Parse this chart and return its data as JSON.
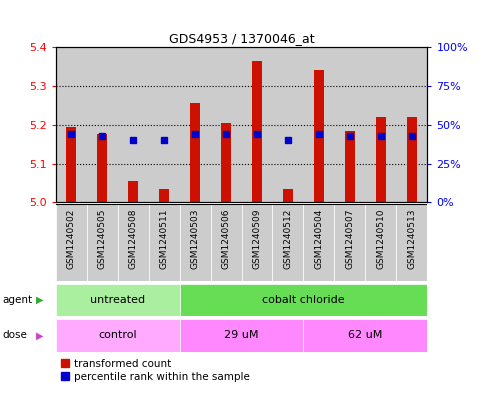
{
  "title": "GDS4953 / 1370046_at",
  "samples": [
    "GSM1240502",
    "GSM1240505",
    "GSM1240508",
    "GSM1240511",
    "GSM1240503",
    "GSM1240506",
    "GSM1240509",
    "GSM1240512",
    "GSM1240504",
    "GSM1240507",
    "GSM1240510",
    "GSM1240513"
  ],
  "red_values": [
    5.195,
    5.175,
    5.055,
    5.035,
    5.255,
    5.205,
    5.365,
    5.035,
    5.34,
    5.185,
    5.22,
    5.22
  ],
  "blue_pct": [
    44,
    43,
    40,
    40,
    44,
    44,
    44,
    40,
    44,
    43,
    43,
    43
  ],
  "ylim_left": [
    5.0,
    5.4
  ],
  "ylim_right": [
    0,
    100
  ],
  "yticks_left": [
    5.0,
    5.1,
    5.2,
    5.3,
    5.4
  ],
  "yticks_right": [
    0,
    25,
    50,
    75,
    100
  ],
  "ytick_labels_right": [
    "0%",
    "25%",
    "50%",
    "75%",
    "100%"
  ],
  "agent_groups": [
    {
      "label": "untreated",
      "span": [
        0,
        4
      ],
      "color": "#AAEEA0"
    },
    {
      "label": "cobalt chloride",
      "span": [
        4,
        12
      ],
      "color": "#66DD55"
    }
  ],
  "dose_colors": [
    "#FFAAFF",
    "#FF88FF",
    "#FF88FF"
  ],
  "dose_groups": [
    {
      "label": "control",
      "span": [
        0,
        4
      ]
    },
    {
      "label": "29 uM",
      "span": [
        4,
        8
      ]
    },
    {
      "label": "62 uM",
      "span": [
        8,
        12
      ]
    }
  ],
  "legend_red": "transformed count",
  "legend_blue": "percentile rank within the sample",
  "bar_color": "#CC1100",
  "blue_color": "#0000CC",
  "base_value": 5.0,
  "bar_width": 0.35,
  "col_bg_color": "#CCCCCC",
  "plot_bg_color": "#FFFFFF"
}
